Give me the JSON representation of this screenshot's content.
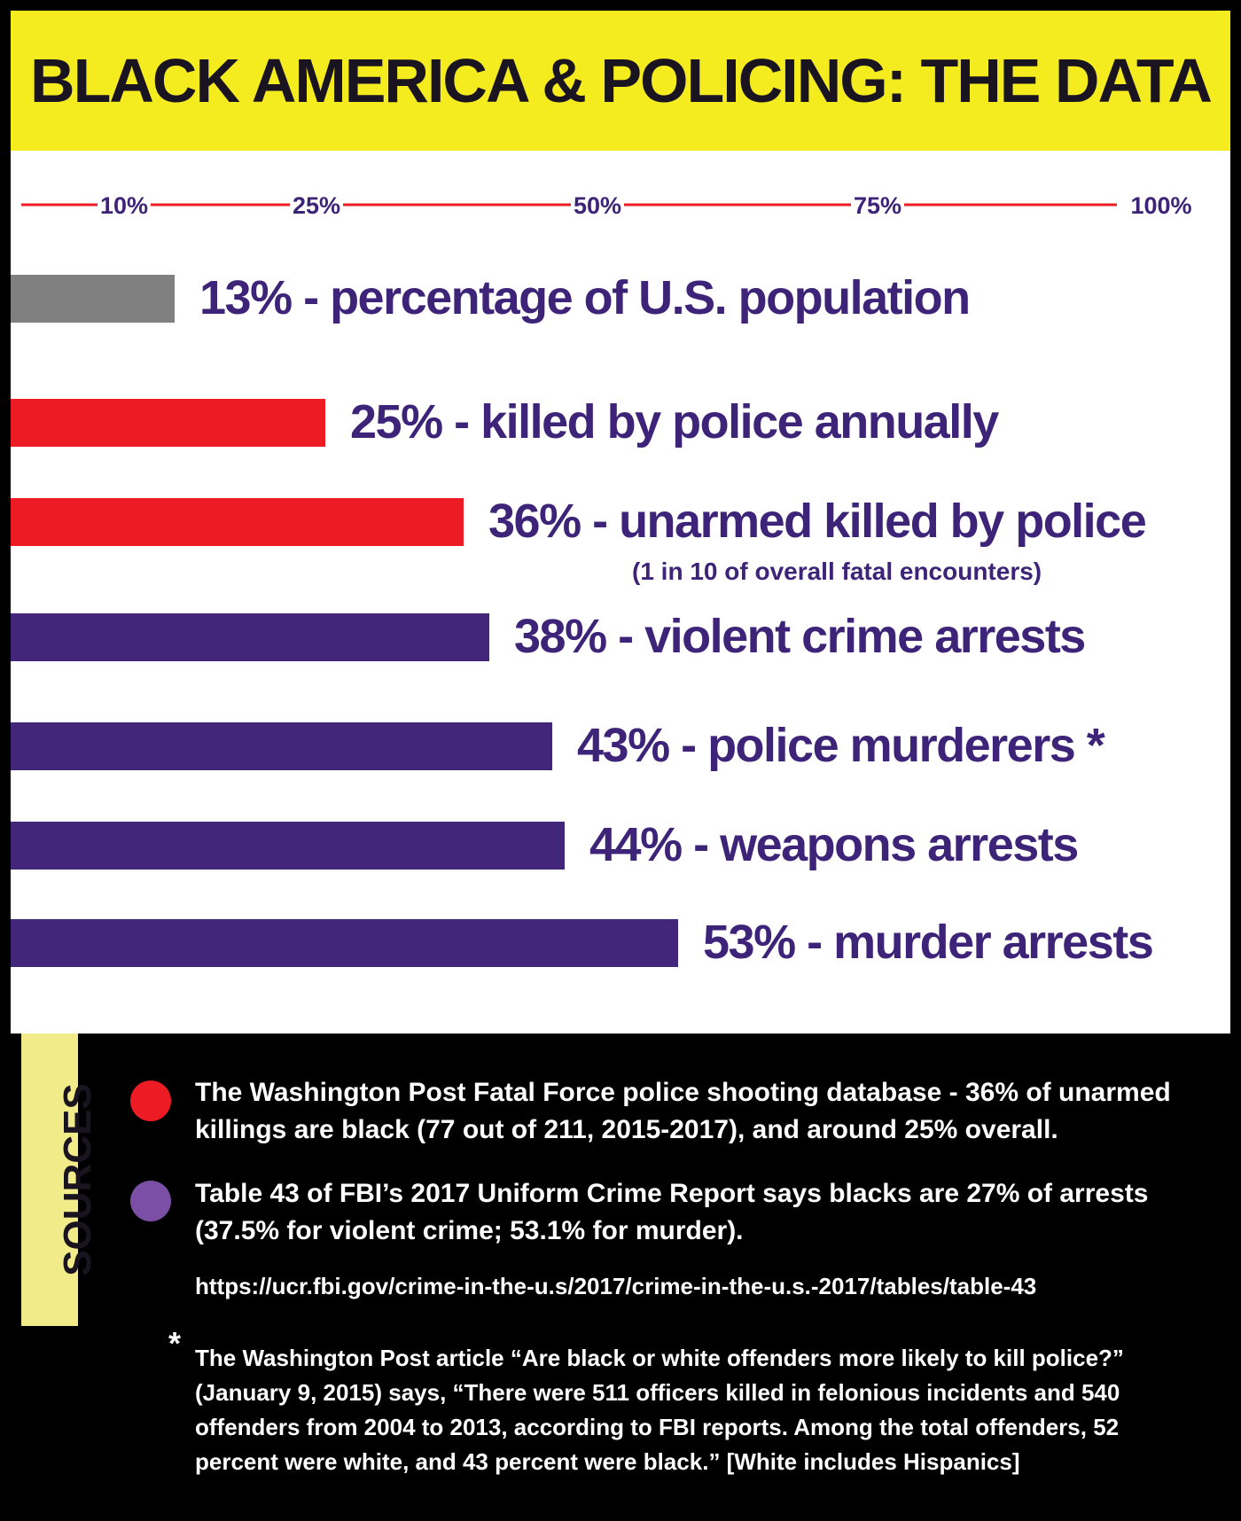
{
  "title": "BLACK AMERICA & POLICING: THE DATA",
  "colors": {
    "yellow": "#f5ec1f",
    "red": "#ed1c24",
    "purple": "#42267a",
    "gray": "#808080",
    "text_purple": "#3d2479"
  },
  "chart_data": {
    "type": "bar",
    "orientation": "horizontal",
    "scale_ticks": [
      "10%",
      "25%",
      "50%",
      "75%",
      "100%"
    ],
    "bars": [
      {
        "value": 13,
        "color": "#808080",
        "label": "13% - percentage of U.S. population"
      },
      {
        "value": 25,
        "color": "#ed1c24",
        "label": "25% - killed by police annually"
      },
      {
        "value": 36,
        "color": "#ed1c24",
        "label": "36% - unarmed killed by police",
        "note": "(1 in 10 of overall fatal encounters)"
      },
      {
        "value": 38,
        "color": "#42267a",
        "label": "38% - violent crime arrests"
      },
      {
        "value": 43,
        "color": "#42267a",
        "label": "43% - police murderers *"
      },
      {
        "value": 44,
        "color": "#42267a",
        "label": "44% - weapons arrests"
      },
      {
        "value": 53,
        "color": "#42267a",
        "label": "53% - murder arrests"
      }
    ]
  },
  "sources": {
    "heading": "SOURCES",
    "items": [
      {
        "color": "#ed1c24",
        "lines": [
          "The Washington Post Fatal Force police shooting database - 36% of unarmed",
          "killings are black (77 out of 211, 2015-2017), and around 25% overall."
        ]
      },
      {
        "color": "#7b4fa6",
        "lines": [
          "Table 43 of FBI’s 2017 Uniform Crime Report says blacks are 27% of arrests",
          "(37.5% for violent crime; 53.1% for murder)."
        ]
      }
    ],
    "url": "https://ucr.fbi.gov/crime-in-the-u.s/2017/crime-in-the-u.s.-2017/tables/table-43",
    "footnote_mark": "*",
    "footnote_lines": [
      "The Washington Post article “Are black or white offenders more likely to kill police?”",
      "(January 9, 2015) says, “There were 511 officers killed in felonious incidents and 540",
      "offenders from 2004 to 2013, according to FBI reports. Among the total offenders, 52",
      "percent were white, and 43 percent were black.” [White includes Hispanics]"
    ]
  }
}
